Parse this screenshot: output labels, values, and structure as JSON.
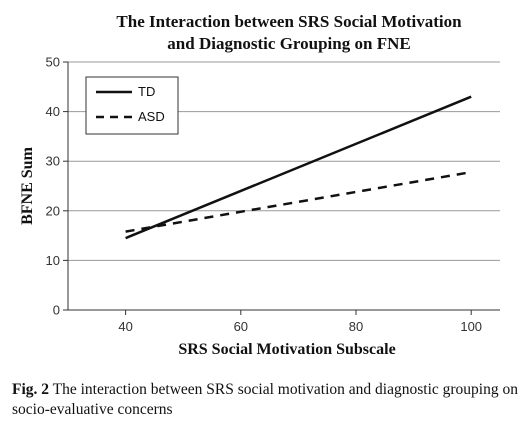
{
  "chart_data": {
    "type": "line",
    "title_lines": [
      "The Interaction between SRS Social Motivation",
      "and Diagnostic Grouping on FNE"
    ],
    "xlabel": "SRS Social Motivation Subscale",
    "ylabel": "BFNE Sum",
    "xlim": [
      30,
      105
    ],
    "ylim": [
      0,
      50
    ],
    "x_ticks": [
      40,
      60,
      80,
      100
    ],
    "x_tick_labels": [
      "40",
      "60",
      "80",
      "100"
    ],
    "y_ticks": [
      0,
      10,
      20,
      30,
      40,
      50
    ],
    "y_tick_labels": [
      "0",
      "10",
      "20",
      "30",
      "40",
      "50"
    ],
    "grid": "horizontal",
    "legend_position": "top-left",
    "x": [
      40,
      100
    ],
    "series": [
      {
        "name": "TD",
        "style": "solid",
        "values": [
          14.5,
          43
        ]
      },
      {
        "name": "ASD",
        "style": "dashed",
        "values": [
          15.8,
          27.8
        ]
      }
    ]
  },
  "caption": {
    "label": "Fig. 2",
    "text": "The interaction between SRS social motivation and diagnostic grouping on socio-evaluative concerns"
  },
  "colors": {
    "line": "#111111",
    "grid": "#9a9a9a",
    "axis": "#333333"
  }
}
